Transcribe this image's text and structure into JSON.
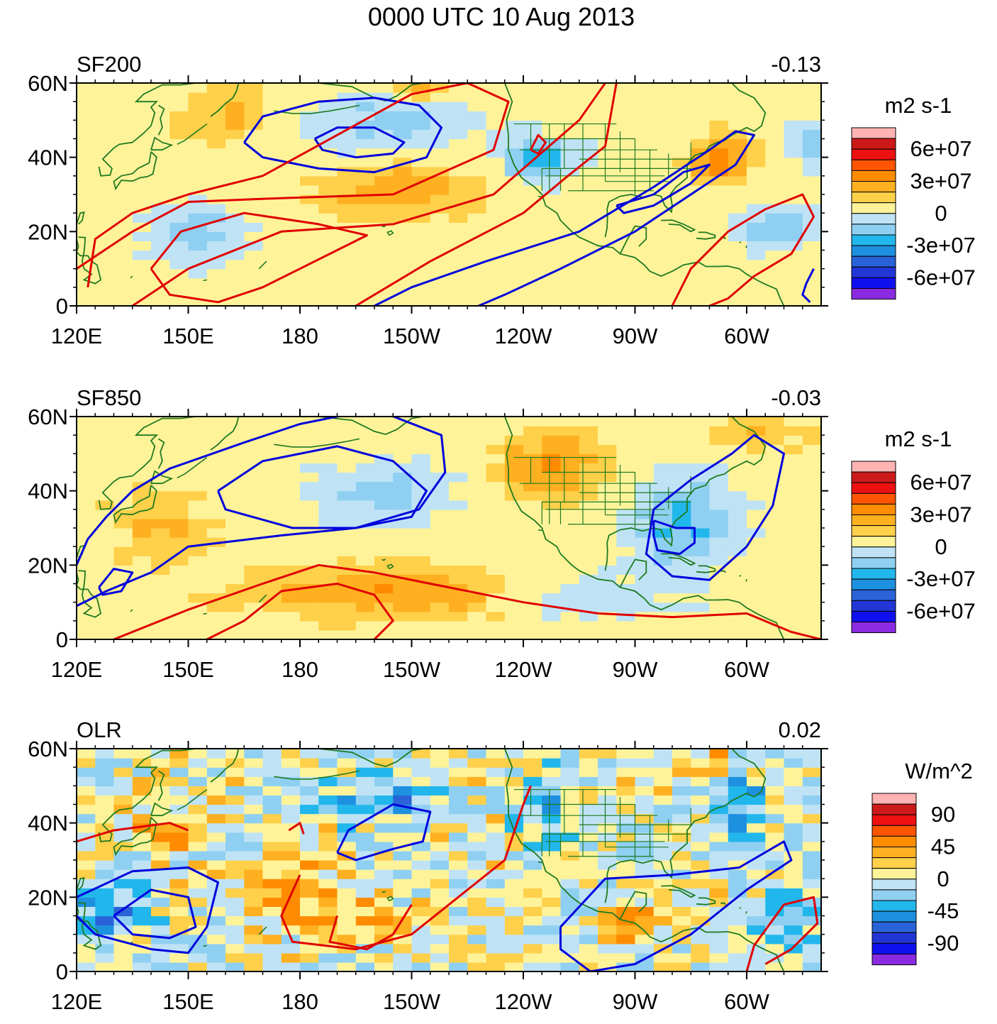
{
  "figure": {
    "title": "0000 UTC 10 Aug 2013"
  },
  "colors": {
    "map_land": "#1f7a1f",
    "contour_positive": "#e00000",
    "contour_negative": "#0000dd",
    "frame": "#000000"
  },
  "chart_data": [
    {
      "type": "heatmap",
      "name": "SF200",
      "title": "SF200",
      "right_label": "-0.13",
      "xlabel": "",
      "ylabel": "",
      "x_range_deg_east": [
        120,
        320
      ],
      "y_range_deg_north": [
        0,
        60
      ],
      "x_tick_labels": [
        "120E",
        "150E",
        "180",
        "150W",
        "120W",
        "90W",
        "60W"
      ],
      "x_tick_values_deg_east": [
        120,
        150,
        180,
        210,
        240,
        270,
        300
      ],
      "y_tick_labels": [
        "0",
        "20N",
        "40N",
        "60N"
      ],
      "y_tick_values": [
        0,
        20,
        40,
        60
      ],
      "colorbar": {
        "units": "m2 s-1",
        "labels": [
          "6e+07",
          "3e+07",
          "0",
          "-3e+07",
          "-6e+07"
        ],
        "label_values": [
          60000000,
          30000000,
          0,
          -30000000,
          -60000000
        ],
        "fill_colors_top_to_bottom": [
          "#ffb3b3",
          "#cc1a1a",
          "#ee1111",
          "#ff5500",
          "#ff8c00",
          "#ffb020",
          "#ffd04a",
          "#fff39a",
          "#bfe3f5",
          "#8fd0f2",
          "#22b7ec",
          "#1e90e0",
          "#2a63d8",
          "#2236d6",
          "#1010ee",
          "#8a2be2"
        ]
      },
      "grid": false,
      "contours": "positive (red) and negative (blue) streamfunction anomaly isolines"
    },
    {
      "type": "heatmap",
      "name": "SF850",
      "title": "SF850",
      "right_label": "-0.03",
      "xlabel": "",
      "ylabel": "",
      "x_range_deg_east": [
        120,
        320
      ],
      "y_range_deg_north": [
        0,
        60
      ],
      "x_tick_labels": [
        "120E",
        "150E",
        "180",
        "150W",
        "120W",
        "90W",
        "60W"
      ],
      "x_tick_values_deg_east": [
        120,
        150,
        180,
        210,
        240,
        270,
        300
      ],
      "y_tick_labels": [
        "0",
        "20N",
        "40N",
        "60N"
      ],
      "y_tick_values": [
        0,
        20,
        40,
        60
      ],
      "colorbar": {
        "units": "m2 s-1",
        "labels": [
          "6e+07",
          "3e+07",
          "0",
          "-3e+07",
          "-6e+07"
        ],
        "label_values": [
          60000000,
          30000000,
          0,
          -30000000,
          -60000000
        ],
        "fill_colors_top_to_bottom": [
          "#ffb3b3",
          "#cc1a1a",
          "#ee1111",
          "#ff5500",
          "#ff8c00",
          "#ffb020",
          "#ffd04a",
          "#fff39a",
          "#bfe3f5",
          "#8fd0f2",
          "#22b7ec",
          "#1e90e0",
          "#2a63d8",
          "#2236d6",
          "#1010ee",
          "#8a2be2"
        ]
      },
      "grid": false,
      "contours": "positive (red) and negative (blue) streamfunction anomaly isolines"
    },
    {
      "type": "heatmap",
      "name": "OLR",
      "title": "OLR",
      "right_label": "0.02",
      "xlabel": "",
      "ylabel": "",
      "x_range_deg_east": [
        120,
        320
      ],
      "y_range_deg_north": [
        0,
        60
      ],
      "x_tick_labels": [
        "120E",
        "150E",
        "180",
        "150W",
        "120W",
        "90W",
        "60W"
      ],
      "x_tick_values_deg_east": [
        120,
        150,
        180,
        210,
        240,
        270,
        300
      ],
      "y_tick_labels": [
        "0",
        "20N",
        "40N",
        "60N"
      ],
      "y_tick_values": [
        0,
        20,
        40,
        60
      ],
      "colorbar": {
        "units": "W/m^2",
        "labels": [
          "90",
          "45",
          "0",
          "-45",
          "-90"
        ],
        "label_values": [
          90,
          45,
          0,
          -45,
          -90
        ],
        "fill_colors_top_to_bottom": [
          "#ffb3b3",
          "#cc1a1a",
          "#ee1111",
          "#ff5500",
          "#ff8c00",
          "#ffb020",
          "#ffd04a",
          "#fff39a",
          "#bfe3f5",
          "#8fd0f2",
          "#22b7ec",
          "#1e90e0",
          "#2a63d8",
          "#2236d6",
          "#1010ee",
          "#8a2be2"
        ]
      },
      "grid": false,
      "contours": "filtered OLR anomaly isolines, positive red, negative blue"
    }
  ]
}
